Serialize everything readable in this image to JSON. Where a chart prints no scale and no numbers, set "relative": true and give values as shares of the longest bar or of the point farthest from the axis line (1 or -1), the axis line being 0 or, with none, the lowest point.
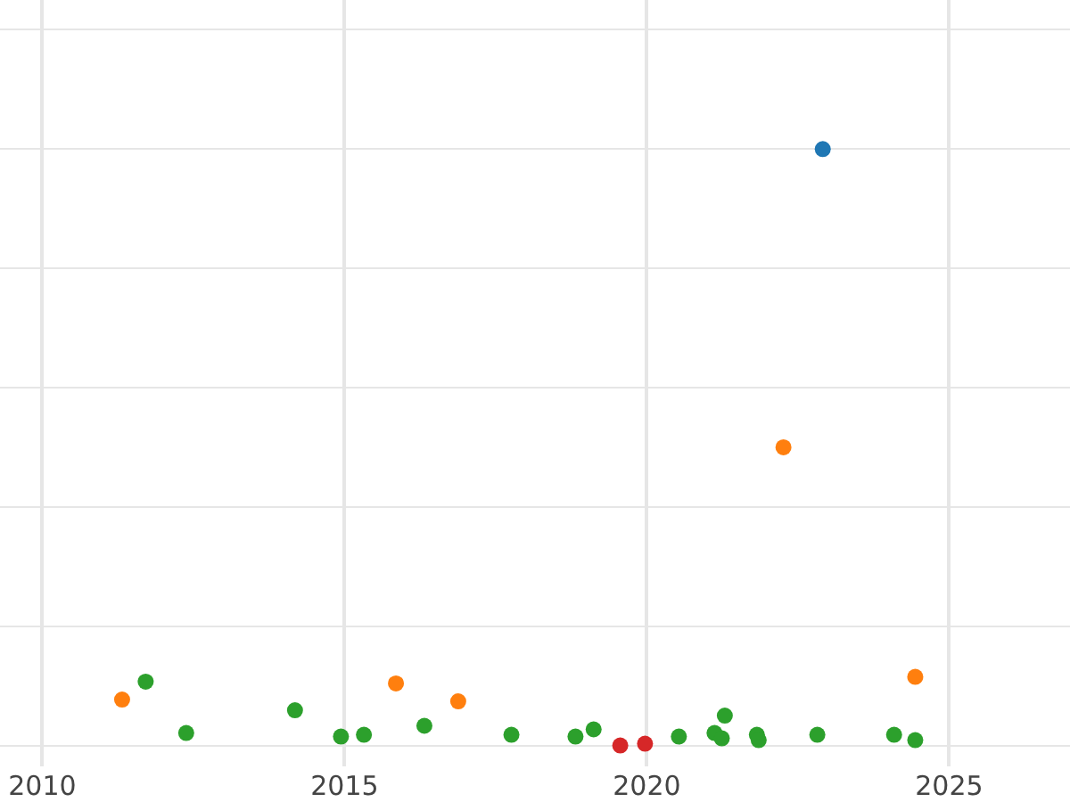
{
  "chart_data": {
    "type": "scatter",
    "relative": true,
    "grid": true,
    "marker": "circle",
    "tick_labels": "x",
    "xlim": [
      2009.3,
      2027
    ],
    "xticks": [
      2010,
      2015,
      2020,
      2025
    ],
    "series": [
      {
        "color": "#1f77b4",
        "x": [
          2022.91
        ],
        "values": [
          1
        ]
      },
      {
        "color": "#ff7f0e",
        "x": [
          2011.32,
          2015.85,
          2016.88,
          2022.26,
          2024.44
        ],
        "values": [
          0.077,
          0.104,
          0.074,
          0.5,
          0.115
        ]
      },
      {
        "color": "#2ca02c",
        "x": [
          2011.71,
          2012.38,
          2014.18,
          2014.94,
          2015.32,
          2016.32,
          2017.76,
          2018.82,
          2019.12,
          2020.53,
          2021.12,
          2021.24,
          2021.29,
          2021.82,
          2021.85,
          2022.82,
          2024.09,
          2024.44
        ],
        "values": [
          0.107,
          0.021,
          0.059,
          0.015,
          0.018,
          0.033,
          0.018,
          0.015,
          0.027,
          0.015,
          0.021,
          0.012,
          0.05,
          0.018,
          0.009,
          0.018,
          0.018,
          0.009
        ]
      },
      {
        "color": "#d62728",
        "x": [
          2019.56,
          2019.97
        ],
        "values": [
          0,
          0.003
        ]
      }
    ]
  }
}
